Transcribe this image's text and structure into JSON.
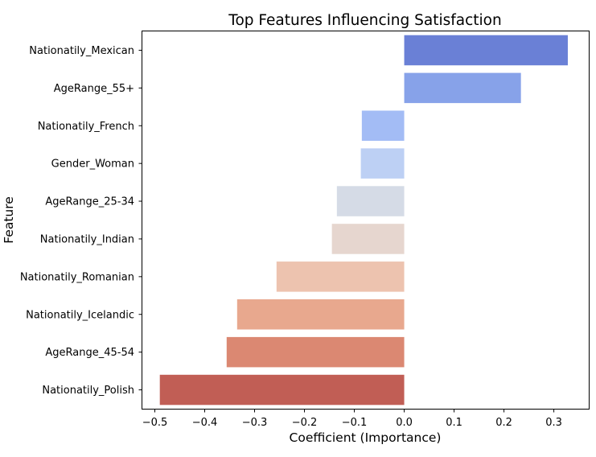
{
  "chart_data": {
    "type": "bar",
    "orientation": "horizontal",
    "title": "Top Features Influencing Satisfaction",
    "xlabel": "Coefficient (Importance)",
    "ylabel": "Feature",
    "xlim": [
      -0.525,
      0.37
    ],
    "xticks": [
      -0.5,
      -0.4,
      -0.3,
      -0.2,
      -0.1,
      0.0,
      0.1,
      0.2,
      0.3
    ],
    "xtick_labels": [
      "−0.5",
      "−0.4",
      "−0.3",
      "−0.2",
      "−0.1",
      "0.0",
      "0.1",
      "0.2",
      "0.3"
    ],
    "grid": false,
    "legend": "none",
    "categories": [
      "Nationatily_Mexican",
      "AgeRange_55+",
      "Nationatily_French",
      "Gender_Woman",
      "AgeRange_25-34",
      "Nationatily_Indian",
      "Nationatily_Romanian",
      "Nationatily_Icelandic",
      "AgeRange_45-54",
      "Nationatily_Polish"
    ],
    "values": [
      0.328,
      0.234,
      -0.085,
      -0.087,
      -0.135,
      -0.145,
      -0.256,
      -0.335,
      -0.356,
      -0.49
    ],
    "colors": [
      "#6a80d6",
      "#87a2e9",
      "#a3bcf5",
      "#bdd0f4",
      "#d5dbe6",
      "#e6d6cf",
      "#edc3af",
      "#e8a88e",
      "#db8872",
      "#c15e55"
    ]
  }
}
